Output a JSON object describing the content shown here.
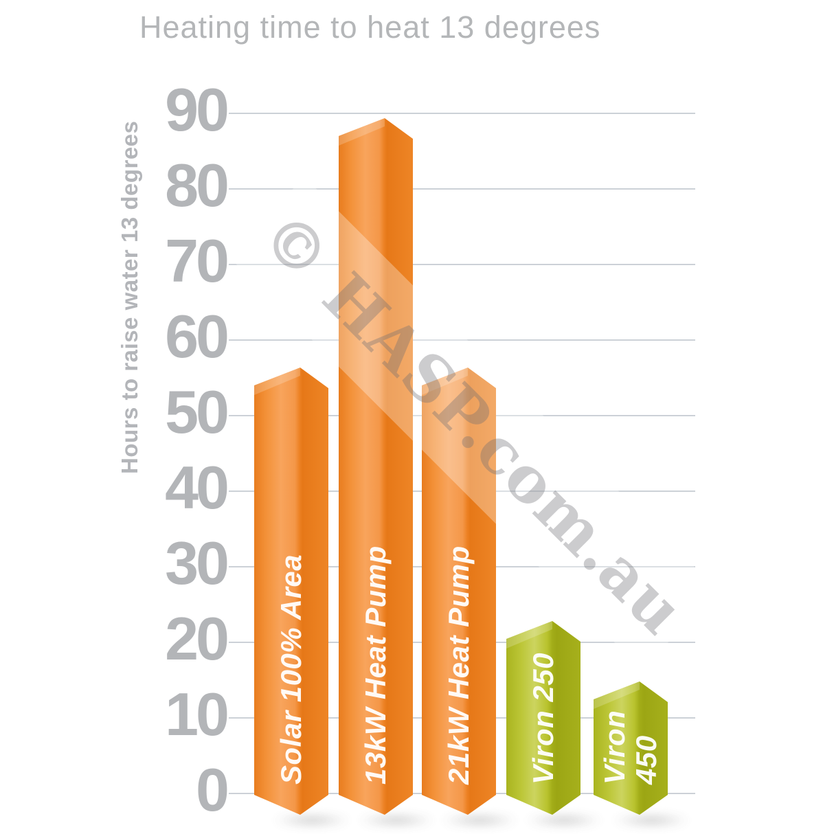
{
  "page": {
    "background": "#ffffff"
  },
  "chart_data": {
    "type": "bar",
    "title": "Heating time to heat 13 degrees",
    "xlabel": "",
    "ylabel": "Hours to raise water 13 degrees",
    "categories": [
      "Solar 100% Area",
      "13kW Heat Pump",
      "21kW Heat Pump",
      "Viron 250",
      "Viron 450"
    ],
    "values": [
      54,
      87,
      54,
      20.5,
      12.5
    ],
    "bar_colors": [
      "orange",
      "orange",
      "orange",
      "green",
      "green"
    ],
    "ylim": [
      0,
      90
    ],
    "yticks": [
      90,
      80,
      70,
      60,
      50,
      40,
      30,
      20,
      10,
      0
    ],
    "grid": "horizontal",
    "legend_position": "none",
    "bar_label_placement": "rotated 90deg inside bar, bottom anchored"
  },
  "watermark": {
    "text": "© HASP.com.au"
  },
  "colors": {
    "orange_bar": "#F08A2B",
    "green_bar": "#B5BF26",
    "axis_text": "#b3b5b8",
    "title_text": "#b4b6b8",
    "gridline": "#ccd1d7",
    "bar_label_text": "#ffffff",
    "watermark_gray": "#d6d7d8"
  }
}
